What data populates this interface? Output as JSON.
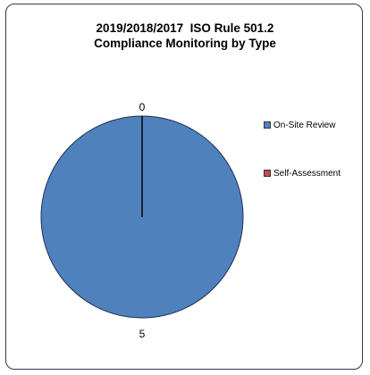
{
  "chart_data": {
    "type": "pie",
    "title": [
      "2019/2018/2017  ISO Rule 501.2",
      "Compliance Monitoring by Type"
    ],
    "categories": [
      "On-Site Review",
      "Self-Assessment"
    ],
    "values": [
      5,
      0
    ],
    "data_labels": [
      "5",
      "0"
    ],
    "colors": [
      "#4f81bd",
      "#c0504d"
    ],
    "legend_position": "right"
  }
}
